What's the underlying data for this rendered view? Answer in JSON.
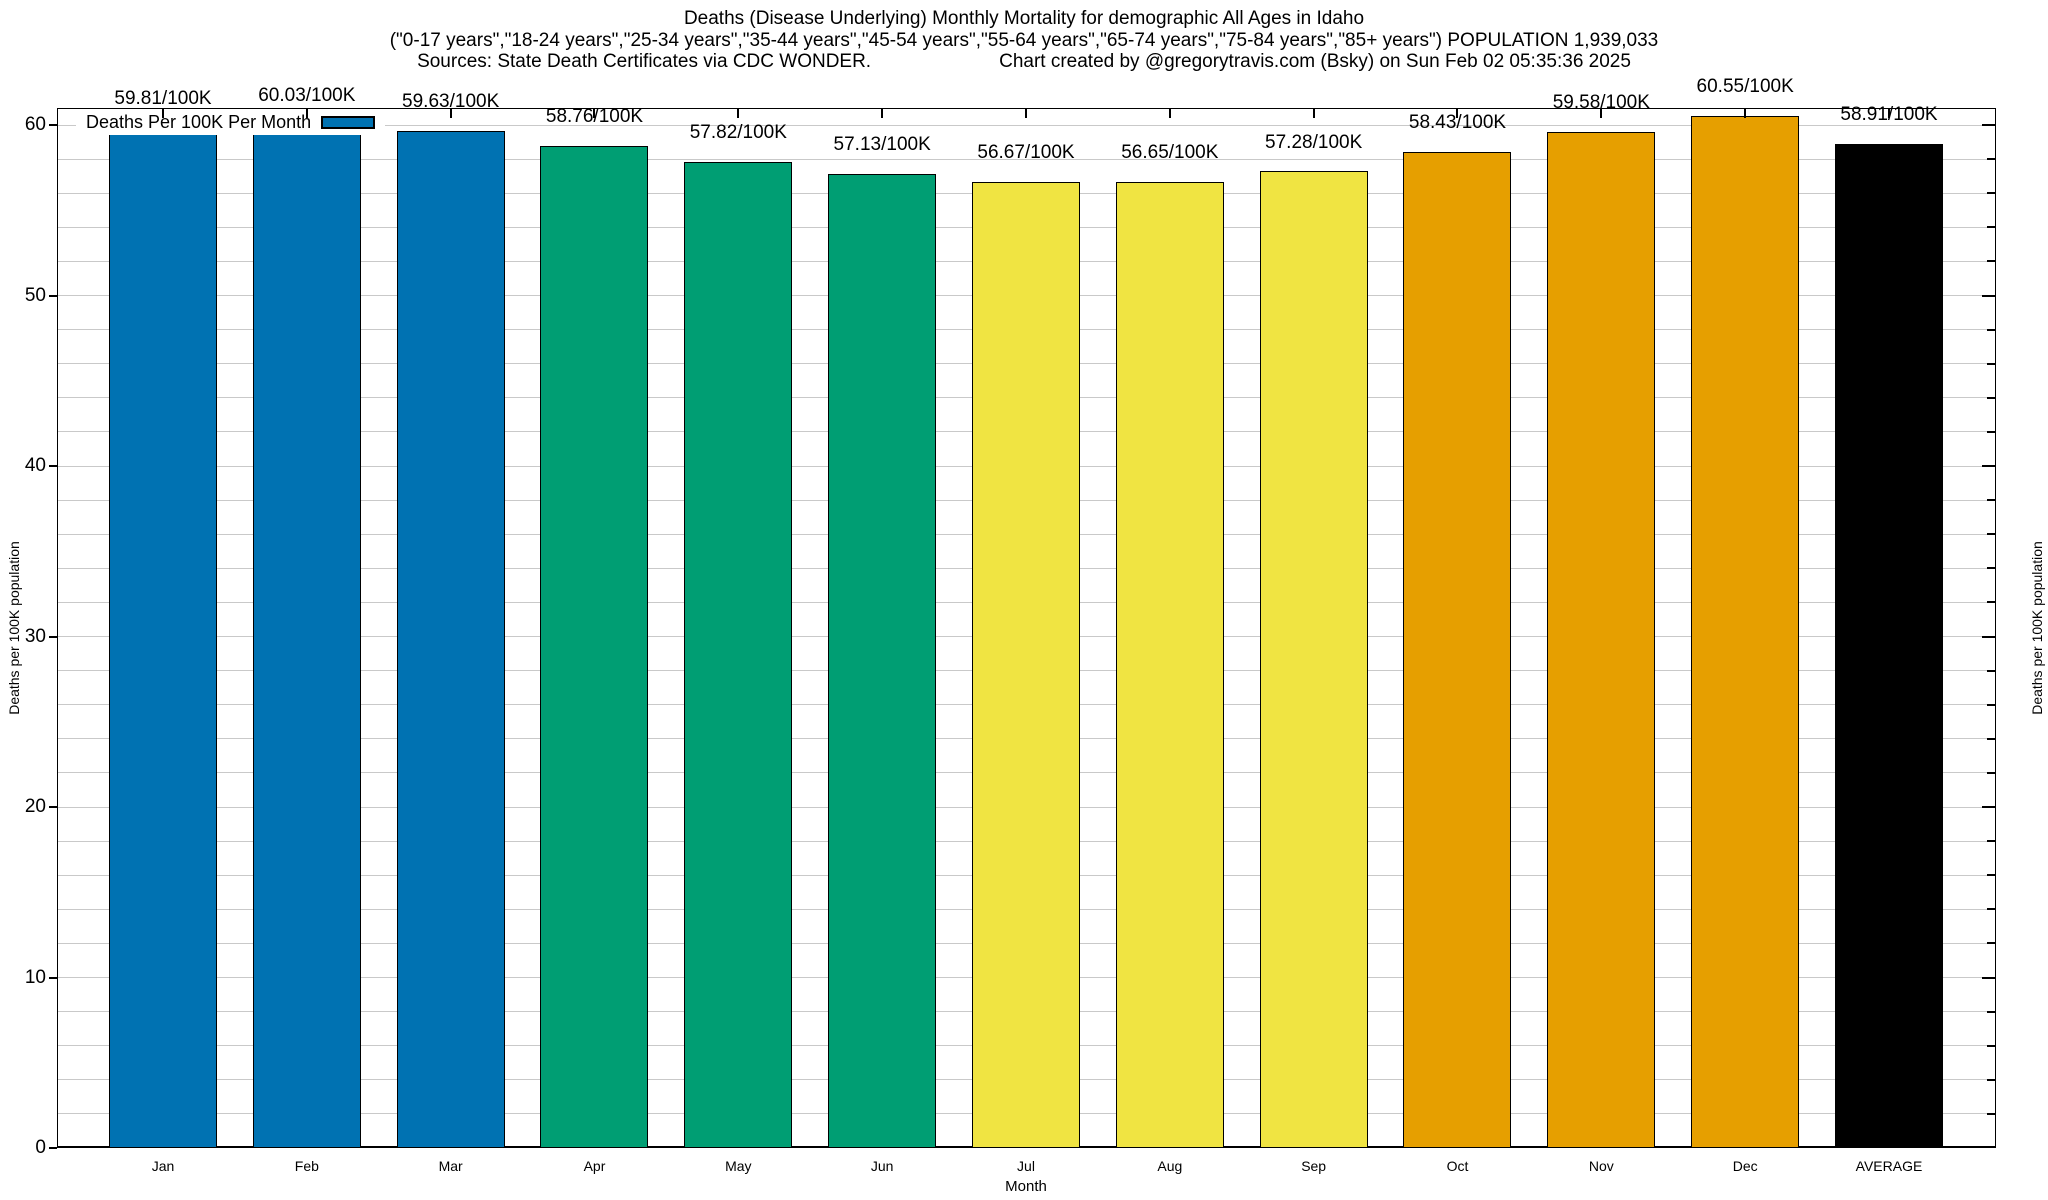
{
  "header": {
    "title": "Deaths (Disease Underlying) Monthly Mortality for demographic All Ages in Idaho",
    "subtitle": "(\"0-17 years\",\"18-24 years\",\"25-34 years\",\"35-44 years\",\"45-54 years\",\"55-64 years\",\"65-74 years\",\"75-84 years\",\"85+ years\") POPULATION 1,939,033",
    "sources": "Sources: State Death Certificates via CDC WONDER.",
    "credit": "Chart created by @gregorytravis.com (Bsky) on Sun Feb 02 05:35:36 2025"
  },
  "legend": {
    "label": "Deaths Per 100K Per Month",
    "swatch_color": "#0072B2"
  },
  "chart_data": {
    "type": "bar",
    "title": "Deaths (Disease Underlying) Monthly Mortality for demographic All Ages in Idaho",
    "categories": [
      "Jan",
      "Feb",
      "Mar",
      "Apr",
      "May",
      "Jun",
      "Jul",
      "Aug",
      "Sep",
      "Oct",
      "Nov",
      "Dec",
      "AVERAGE"
    ],
    "values": [
      59.81,
      60.03,
      59.63,
      58.76,
      57.82,
      57.13,
      56.67,
      56.65,
      57.28,
      58.43,
      59.58,
      60.55,
      58.91
    ],
    "value_labels": [
      "59.81/100K",
      "60.03/100K",
      "59.63/100K",
      "58.76/100K",
      "57.82/100K",
      "57.13/100K",
      "56.67/100K",
      "56.65/100K",
      "57.28/100K",
      "58.43/100K",
      "59.58/100K",
      "60.55/100K",
      "58.91/100K"
    ],
    "bar_colors": [
      "#0072B2",
      "#0072B2",
      "#0072B2",
      "#009E73",
      "#009E73",
      "#009E73",
      "#F0E442",
      "#F0E442",
      "#F0E442",
      "#E69F00",
      "#E69F00",
      "#E69F00",
      "#000000"
    ],
    "xlabel": "Month",
    "ylabel_left": "Deaths per 100K population",
    "ylabel_right": "Deaths per 100K population",
    "ylim": [
      0,
      61
    ],
    "yticks": [
      0,
      10,
      20,
      30,
      40,
      50,
      60
    ],
    "minor_tick_step": 2,
    "grid": "light horizontal gridlines every 2 units, behind bars",
    "legend": "Deaths Per 100K Per Month",
    "legend_position": "top-left"
  },
  "palette": {
    "blue": "#0072B2",
    "green": "#009E73",
    "yellow": "#F0E442",
    "orange": "#E69F00",
    "average_black": "#000000",
    "gridline_gray": "#c9c9c9"
  }
}
